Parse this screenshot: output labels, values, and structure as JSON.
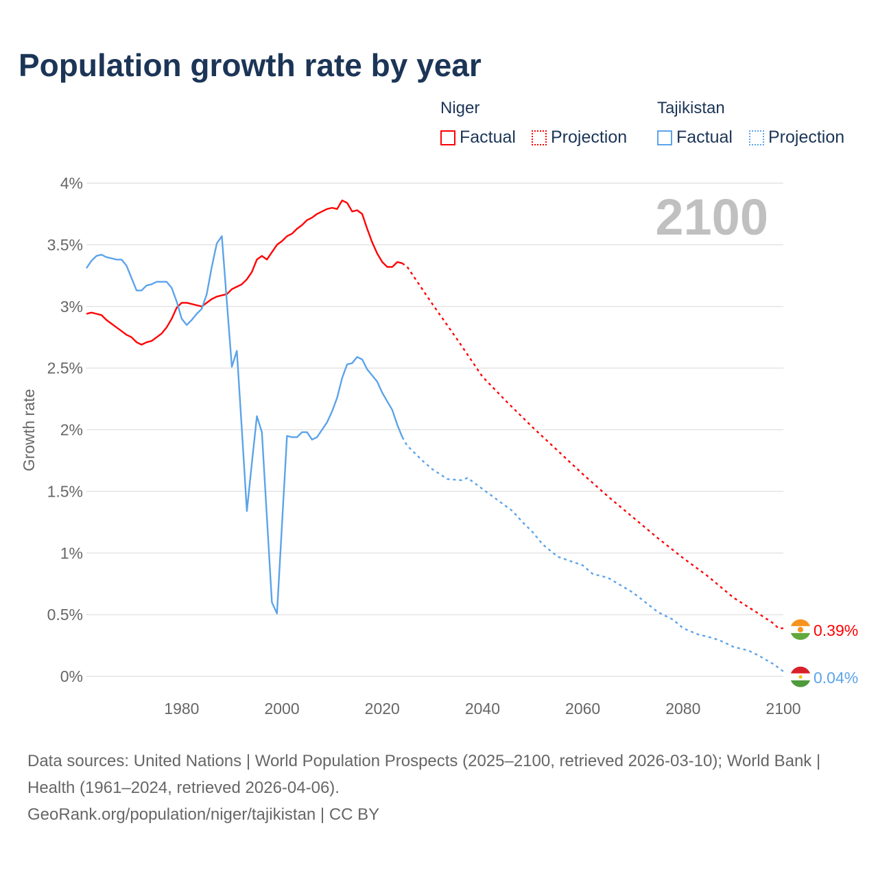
{
  "title": "Population growth rate by year",
  "legend": {
    "groups": [
      {
        "name": "Niger",
        "color": "#ff0000",
        "factual": "Factual",
        "projection": "Projection"
      },
      {
        "name": "Tajikistan",
        "color": "#5ba3ea",
        "factual": "Factual",
        "projection": "Projection"
      }
    ]
  },
  "year_display": "2100",
  "footer": {
    "sources": "Data sources: United Nations | World Population Prospects (2025–2100, retrieved 2026-03-10); World Bank | Health (1961–2024, retrieved 2026-04-06).",
    "link": "GeoRank.org/population/niger/tajikistan | CC BY"
  },
  "chart_data": {
    "type": "line",
    "title": "Population growth rate by year",
    "xlabel": "",
    "ylabel": "Growth rate",
    "xlim": [
      1961,
      2100
    ],
    "ylim": [
      0,
      4
    ],
    "xticks": [
      1980,
      2000,
      2020,
      2040,
      2060,
      2080,
      2100
    ],
    "yticks": [
      0,
      0.5,
      1,
      1.5,
      2,
      2.5,
      3,
      3.5,
      4
    ],
    "ytick_labels": [
      "0%",
      "0.5%",
      "1%",
      "1.5%",
      "2%",
      "2.5%",
      "3%",
      "3.5%",
      "4%"
    ],
    "grid": true,
    "legend_position": "top-right",
    "series": [
      {
        "name": "Niger",
        "color": "#ff0000",
        "end_label": "0.39%",
        "factual": {
          "start_year": 1961,
          "values": [
            2.94,
            2.95,
            2.94,
            2.93,
            2.89,
            2.86,
            2.83,
            2.8,
            2.77,
            2.75,
            2.71,
            2.69,
            2.71,
            2.72,
            2.75,
            2.78,
            2.83,
            2.9,
            2.99,
            3.03,
            3.03,
            3.02,
            3.01,
            3.0,
            3.03,
            3.06,
            3.08,
            3.09,
            3.1,
            3.14,
            3.16,
            3.18,
            3.22,
            3.28,
            3.38,
            3.41,
            3.38,
            3.44,
            3.5,
            3.53,
            3.57,
            3.59,
            3.63,
            3.66,
            3.7,
            3.72,
            3.75,
            3.77,
            3.79,
            3.8,
            3.79,
            3.86,
            3.84,
            3.77,
            3.78,
            3.75,
            3.63,
            3.52,
            3.43,
            3.36,
            3.32,
            3.32,
            3.36,
            3.35
          ]
        },
        "projection": [
          [
            2024,
            3.35
          ],
          [
            2025,
            3.32
          ],
          [
            2030,
            3.02
          ],
          [
            2035,
            2.73
          ],
          [
            2040,
            2.43
          ],
          [
            2045,
            2.22
          ],
          [
            2050,
            2.02
          ],
          [
            2055,
            1.83
          ],
          [
            2060,
            1.64
          ],
          [
            2065,
            1.46
          ],
          [
            2070,
            1.29
          ],
          [
            2075,
            1.12
          ],
          [
            2080,
            0.96
          ],
          [
            2085,
            0.81
          ],
          [
            2090,
            0.64
          ],
          [
            2095,
            0.51
          ],
          [
            2098,
            0.43
          ],
          [
            2099,
            0.39
          ],
          [
            2100,
            0.39
          ]
        ]
      },
      {
        "name": "Tajikistan",
        "color": "#5ba3ea",
        "end_label": "0.04%",
        "factual": {
          "start_year": 1961,
          "values": [
            3.31,
            3.37,
            3.41,
            3.42,
            3.4,
            3.39,
            3.38,
            3.38,
            3.33,
            3.23,
            3.13,
            3.13,
            3.17,
            3.18,
            3.2,
            3.2,
            3.2,
            3.15,
            3.04,
            2.9,
            2.85,
            2.89,
            2.94,
            2.98,
            3.1,
            3.32,
            3.51,
            3.57,
            3.04,
            2.51,
            2.64,
            2.0,
            1.34,
            1.73,
            2.11,
            1.98,
            1.29,
            0.6,
            0.51,
            1.23,
            1.95,
            1.94,
            1.94,
            1.98,
            1.98,
            1.92,
            1.94,
            2.0,
            2.06,
            2.15,
            2.26,
            2.42,
            2.53,
            2.54,
            2.59,
            2.57,
            2.49,
            2.44,
            2.39,
            2.3,
            2.23,
            2.16,
            2.04,
            1.94
          ]
        },
        "projection": [
          [
            2024,
            1.94
          ],
          [
            2025,
            1.87
          ],
          [
            2028,
            1.75
          ],
          [
            2030,
            1.68
          ],
          [
            2033,
            1.6
          ],
          [
            2036,
            1.59
          ],
          [
            2037,
            1.61
          ],
          [
            2040,
            1.52
          ],
          [
            2043,
            1.43
          ],
          [
            2046,
            1.34
          ],
          [
            2048,
            1.25
          ],
          [
            2050,
            1.17
          ],
          [
            2052,
            1.07
          ],
          [
            2055,
            0.97
          ],
          [
            2060,
            0.9
          ],
          [
            2062,
            0.83
          ],
          [
            2065,
            0.8
          ],
          [
            2070,
            0.68
          ],
          [
            2075,
            0.52
          ],
          [
            2078,
            0.46
          ],
          [
            2080,
            0.39
          ],
          [
            2083,
            0.34
          ],
          [
            2086,
            0.31
          ],
          [
            2088,
            0.28
          ],
          [
            2090,
            0.24
          ],
          [
            2093,
            0.21
          ],
          [
            2095,
            0.17
          ],
          [
            2098,
            0.1
          ],
          [
            2100,
            0.04
          ]
        ]
      }
    ]
  }
}
